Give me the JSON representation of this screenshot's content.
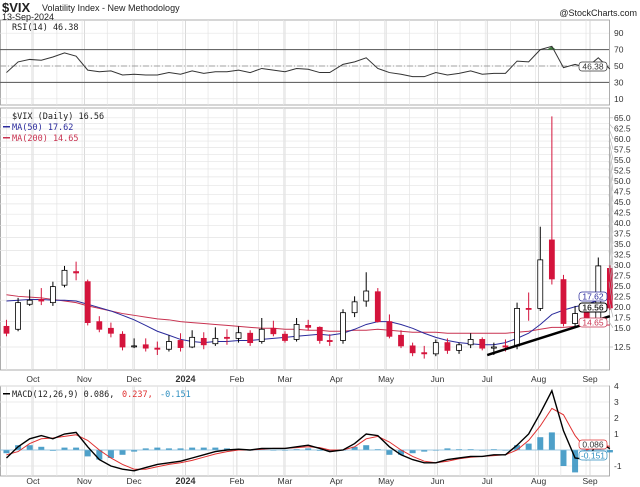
{
  "header": {
    "symbol": "$VIX",
    "name": "Volatility Index - New Methodology",
    "date": "13-Sep-2024",
    "watermark": "@StockCharts.com"
  },
  "rsi_panel": {
    "legend": "RSI(14) 46.38",
    "last_label": "46.38"
  },
  "price_panel": {
    "legend": "$VIX (Daily) 16.56",
    "ma50_legend": "MA(50) 17.62",
    "ma200_legend": "MA(200) 14.65",
    "last_label": "16.56",
    "ma50_label": "17.62",
    "ma200_label": "14.65"
  },
  "macd_panel": {
    "legend_a": "MACD(12,26,9) 0.086,",
    "legend_b": "0.237,",
    "legend_c": "-0.151",
    "label_a": "0.086",
    "label_b": "-0.151"
  },
  "colors": {
    "up": "#000000",
    "down": "#d4143c",
    "ma50": "#2b2b9c",
    "ma200": "#c83250",
    "macd": "#000000",
    "signal": "#e03030",
    "hist": "#2f8fc0",
    "rsi": "#333333",
    "rsi_fill": "#3d7a3d"
  },
  "chart_data": [
    {
      "type": "candlestick",
      "title": "$VIX Volatility Index - New Methodology",
      "scale": "log",
      "ylim": [
        11,
        67
      ],
      "yticks": [
        "12.5",
        "15.0",
        "17.5",
        "20.0",
        "22.5",
        "25.0",
        "27.5",
        "30.0",
        "32.5",
        "35.0",
        "37.5",
        "40.0",
        "42.5",
        "45.0",
        "47.5",
        "50.0",
        "52.5",
        "55.0",
        "57.5",
        "60.0",
        "62.5",
        "65.0"
      ],
      "xticks": [
        "Oct",
        "Nov",
        "Dec",
        "2024",
        "Feb",
        "Mar",
        "Apr",
        "May",
        "Jun",
        "Jul",
        "Aug",
        "Sep"
      ],
      "dates": [
        "2023-09-15",
        "2023-09-22",
        "2023-09-29",
        "2023-10-06",
        "2023-10-13",
        "2023-10-20",
        "2023-10-27",
        "2023-11-03",
        "2023-11-10",
        "2023-11-17",
        "2023-11-24",
        "2023-12-01",
        "2023-12-08",
        "2023-12-15",
        "2023-12-22",
        "2023-12-29",
        "2024-01-05",
        "2024-01-12",
        "2024-01-19",
        "2024-01-26",
        "2024-02-02",
        "2024-02-09",
        "2024-02-16",
        "2024-02-23",
        "2024-03-01",
        "2024-03-08",
        "2024-03-15",
        "2024-03-22",
        "2024-03-28",
        "2024-04-05",
        "2024-04-12",
        "2024-04-19",
        "2024-04-26",
        "2024-05-03",
        "2024-05-10",
        "2024-05-17",
        "2024-05-24",
        "2024-05-31",
        "2024-06-07",
        "2024-06-14",
        "2024-06-21",
        "2024-06-28",
        "2024-07-05",
        "2024-07-12",
        "2024-07-19",
        "2024-07-26",
        "2024-08-02",
        "2024-08-09",
        "2024-08-16",
        "2024-08-23",
        "2024-08-30",
        "2024-09-06",
        "2024-09-13"
      ],
      "open": [
        14.5,
        14.2,
        17.0,
        17.6,
        17.2,
        19.5,
        21.5,
        20.0,
        15.0,
        14.3,
        13.7,
        12.6,
        12.7,
        12.4,
        12.3,
        13.1,
        12.5,
        13.3,
        12.8,
        13.4,
        13.3,
        13.8,
        13.0,
        14.3,
        13.7,
        13.2,
        14.6,
        14.4,
        13.1,
        13.1,
        16.0,
        17.4,
        18.6,
        15.0,
        13.6,
        12.6,
        12.0,
        11.9,
        12.9,
        12.2,
        12.7,
        13.2,
        12.4,
        12.6,
        12.6,
        16.5,
        16.5,
        27.0,
        20.3,
        14.8,
        16.0,
        15.1,
        22.0
      ],
      "high": [
        15.2,
        17.8,
        18.9,
        19.1,
        20.0,
        22.4,
        23.1,
        20.3,
        15.6,
        14.9,
        14.0,
        13.3,
        13.3,
        13.0,
        13.6,
        13.8,
        14.1,
        13.9,
        14.4,
        14.2,
        14.5,
        14.1,
        15.4,
        15.1,
        14.0,
        15.4,
        15.2,
        14.5,
        13.7,
        16.4,
        18.0,
        21.4,
        19.1,
        15.8,
        14.1,
        12.9,
        12.6,
        13.2,
        13.3,
        12.9,
        13.8,
        13.4,
        12.9,
        13.2,
        17.2,
        18.5,
        29.7,
        65.7,
        21.0,
        16.8,
        16.7,
        23.8,
        22.5
      ],
      "low": [
        13.5,
        14.0,
        16.8,
        16.9,
        16.8,
        19.2,
        20.2,
        14.6,
        13.9,
        13.4,
        12.2,
        12.4,
        12.1,
        11.8,
        12.1,
        12.1,
        12.4,
        12.3,
        12.6,
        12.7,
        12.9,
        12.6,
        12.8,
        13.5,
        12.9,
        13.0,
        14.1,
        12.8,
        12.6,
        12.8,
        15.5,
        16.7,
        14.9,
        13.3,
        12.4,
        11.7,
        11.5,
        11.7,
        11.9,
        11.9,
        12.4,
        12.2,
        11.8,
        12.1,
        12.3,
        15.1,
        16.2,
        19.6,
        14.5,
        14.5,
        14.9,
        14.9,
        16.3
      ],
      "close": [
        13.8,
        17.2,
        17.5,
        17.4,
        19.3,
        21.7,
        21.3,
        14.9,
        14.2,
        13.8,
        12.5,
        12.6,
        12.4,
        12.3,
        13.0,
        12.45,
        13.4,
        12.7,
        13.3,
        13.3,
        13.85,
        12.9,
        14.2,
        13.75,
        13.1,
        14.7,
        14.4,
        13.1,
        13.0,
        16.0,
        17.3,
        18.7,
        15.0,
        13.5,
        12.6,
        11.99,
        11.9,
        12.9,
        12.2,
        12.7,
        13.2,
        12.4,
        12.5,
        12.5,
        16.5,
        16.4,
        23.4,
        20.4,
        14.8,
        15.9,
        15.0,
        22.4,
        16.56
      ],
      "ma50": [
        17.4,
        17.5,
        17.6,
        17.6,
        17.5,
        17.5,
        17.4,
        17.0,
        16.6,
        16.2,
        15.7,
        15.2,
        14.6,
        14.0,
        13.6,
        13.2,
        13.0,
        12.9,
        13.0,
        13.0,
        13.1,
        13.1,
        13.2,
        13.3,
        13.4,
        13.5,
        13.6,
        13.7,
        13.6,
        13.8,
        14.2,
        14.7,
        15.0,
        15.0,
        14.7,
        14.3,
        13.8,
        13.4,
        13.1,
        12.9,
        12.8,
        12.7,
        12.7,
        12.9,
        13.3,
        13.8,
        14.7,
        15.8,
        16.3,
        16.7,
        17.0,
        17.5,
        17.62
      ],
      "ma200": [
        18.2,
        18.0,
        17.9,
        17.8,
        17.6,
        17.4,
        17.2,
        16.8,
        16.5,
        16.2,
        15.9,
        15.7,
        15.5,
        15.3,
        15.2,
        15.0,
        14.9,
        14.8,
        14.7,
        14.6,
        14.5,
        14.4,
        14.3,
        14.3,
        14.2,
        14.2,
        14.1,
        14.1,
        14.0,
        14.0,
        14.1,
        14.1,
        14.2,
        14.1,
        14.0,
        13.9,
        13.9,
        13.9,
        13.8,
        13.8,
        13.8,
        13.8,
        13.8,
        13.8,
        13.9,
        14.0,
        14.2,
        14.4,
        14.4,
        14.5,
        14.5,
        14.6,
        14.65
      ],
      "trendline": {
        "from": [
          "2024-07-01",
          11.8
        ],
        "to": [
          "2024-09-13",
          15.6
        ]
      }
    },
    {
      "type": "line",
      "title": "RSI(14)",
      "ylim": [
        0,
        100
      ],
      "yticks": [
        10,
        30,
        50,
        70,
        90
      ],
      "levels": [
        30,
        50,
        70
      ],
      "values": [
        42,
        55,
        58,
        57,
        61,
        66,
        62,
        45,
        43,
        44,
        39,
        40,
        39,
        39,
        42,
        40,
        44,
        41,
        43,
        43,
        45,
        42,
        47,
        45,
        43,
        47,
        46,
        42,
        42,
        52,
        55,
        60,
        47,
        42,
        40,
        37,
        37,
        42,
        39,
        41,
        44,
        40,
        41,
        41,
        56,
        55,
        70,
        74,
        48,
        52,
        48,
        60,
        46.38
      ]
    },
    {
      "type": "line",
      "title": "MACD(12,26,9)",
      "ylim": [
        -1.6,
        4.2
      ],
      "yticks": [
        -1,
        1,
        2,
        3,
        4
      ],
      "macd": [
        -0.5,
        0.2,
        0.7,
        0.9,
        0.7,
        1.0,
        1.1,
        0.2,
        -0.6,
        -1.0,
        -1.2,
        -1.3,
        -1.1,
        -0.9,
        -0.8,
        -0.7,
        -0.5,
        -0.3,
        -0.1,
        0.0,
        0.05,
        0.0,
        0.1,
        0.1,
        0.1,
        0.2,
        0.3,
        0.1,
        -0.1,
        0.0,
        0.4,
        1.0,
        0.9,
        0.2,
        -0.3,
        -0.6,
        -0.8,
        -0.8,
        -0.6,
        -0.5,
        -0.4,
        -0.4,
        -0.3,
        -0.3,
        0.3,
        1.0,
        2.3,
        3.7,
        1.2,
        -0.5,
        -0.6,
        0.5,
        0.086
      ],
      "signal": [
        -0.3,
        -0.1,
        0.4,
        0.7,
        0.75,
        0.85,
        0.95,
        0.6,
        0.0,
        -0.5,
        -0.9,
        -1.2,
        -1.2,
        -1.05,
        -0.9,
        -0.8,
        -0.65,
        -0.45,
        -0.25,
        -0.1,
        0.0,
        0.0,
        0.05,
        0.1,
        0.1,
        0.15,
        0.2,
        0.15,
        0.0,
        0.0,
        0.2,
        0.7,
        0.85,
        0.5,
        0.0,
        -0.4,
        -0.7,
        -0.8,
        -0.7,
        -0.55,
        -0.45,
        -0.4,
        -0.35,
        -0.3,
        0.0,
        0.6,
        1.5,
        2.6,
        2.2,
        0.9,
        0.0,
        0.3,
        0.237
      ]
    }
  ]
}
